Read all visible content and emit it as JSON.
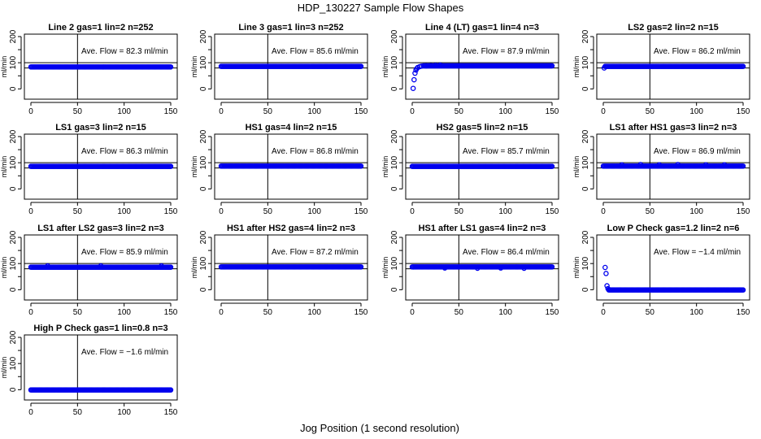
{
  "figure": {
    "title": "HDP_130227  Sample Flow Shapes",
    "xlabel": "Jog Position (1 second resolution)"
  },
  "chart_data": [
    {
      "type": "scatter",
      "title": "Line 2 gas=1 lin=2 n=252",
      "annotation": "Ave. Flow =  82.3  ml/min",
      "ylabel": "ml/min",
      "xlim": [
        0,
        150
      ],
      "ylim": [
        -30,
        200
      ],
      "xticks": [
        0,
        50,
        100,
        150
      ],
      "yticks": [
        0,
        100,
        200
      ],
      "yticks_shown": [
        0,
        50,
        100,
        150,
        200
      ],
      "hlines": [
        100,
        80
      ],
      "vline": 50,
      "marker_color": "#0000ee",
      "dense_points": {
        "x_range": [
          0,
          150
        ],
        "y": 84
      },
      "extra_points": []
    },
    {
      "type": "scatter",
      "title": "Line 3 gas=1 lin=3 n=252",
      "annotation": "Ave. Flow =  85.6  ml/min",
      "ylabel": "ml/min",
      "xlim": [
        0,
        150
      ],
      "ylim": [
        -30,
        200
      ],
      "xticks": [
        0,
        50,
        100,
        150
      ],
      "yticks_shown": [
        0,
        50,
        100,
        150,
        200
      ],
      "hlines": [
        100,
        80
      ],
      "vline": 50,
      "marker_color": "#0000ee",
      "dense_points": {
        "x_range": [
          0,
          150
        ],
        "y": 86
      },
      "extra_points": []
    },
    {
      "type": "scatter",
      "title": "Line 4 (LT) gas=1 lin=4 n=3",
      "annotation": "Ave. Flow =  87.9  ml/min",
      "ylabel": "ml/min",
      "xlim": [
        0,
        150
      ],
      "ylim": [
        -30,
        200
      ],
      "xticks": [
        0,
        50,
        100,
        150
      ],
      "yticks_shown": [
        0,
        50,
        100,
        150,
        200
      ],
      "hlines": [
        100,
        80
      ],
      "vline": 50,
      "marker_color": "#0000ee",
      "dense_points": {
        "x_range": [
          12,
          150
        ],
        "y": 88
      },
      "extra_points": [
        {
          "x": 1,
          "y": 2
        },
        {
          "x": 2,
          "y": 35
        },
        {
          "x": 3,
          "y": 60
        },
        {
          "x": 4,
          "y": 72
        },
        {
          "x": 5,
          "y": 78
        },
        {
          "x": 6,
          "y": 82
        },
        {
          "x": 8,
          "y": 85
        },
        {
          "x": 10,
          "y": 87
        },
        {
          "x": 15,
          "y": 88
        },
        {
          "x": 20,
          "y": 89
        },
        {
          "x": 25,
          "y": 90
        },
        {
          "x": 30,
          "y": 91
        }
      ]
    },
    {
      "type": "scatter",
      "title": "LS2 gas=2 lin=2 n=15",
      "annotation": "Ave. Flow =  86.2  ml/min",
      "ylabel": "ml/min",
      "xlim": [
        0,
        150
      ],
      "ylim": [
        -30,
        200
      ],
      "xticks": [
        0,
        50,
        100,
        150
      ],
      "yticks_shown": [
        0,
        50,
        100,
        150,
        200
      ],
      "hlines": [
        100,
        80
      ],
      "vline": 50,
      "marker_color": "#0000ee",
      "dense_points": {
        "x_range": [
          2,
          150
        ],
        "y": 86
      },
      "extra_points": [
        {
          "x": 1,
          "y": 80
        }
      ]
    },
    {
      "type": "scatter",
      "title": "LS1 gas=3 lin=2 n=15",
      "annotation": "Ave. Flow =  86.3  ml/min",
      "ylabel": "ml/min",
      "xlim": [
        0,
        150
      ],
      "ylim": [
        -30,
        200
      ],
      "xticks": [
        0,
        50,
        100,
        150
      ],
      "yticks_shown": [
        0,
        50,
        100,
        150,
        200
      ],
      "hlines": [
        100,
        80
      ],
      "vline": 50,
      "marker_color": "#0000ee",
      "dense_points": {
        "x_range": [
          0,
          150
        ],
        "y": 86
      },
      "extra_points": []
    },
    {
      "type": "scatter",
      "title": "HS1 gas=4 lin=2 n=15",
      "annotation": "Ave. Flow =  86.8  ml/min",
      "ylabel": "ml/min",
      "xlim": [
        0,
        150
      ],
      "ylim": [
        -30,
        200
      ],
      "xticks": [
        0,
        50,
        100,
        150
      ],
      "yticks_shown": [
        0,
        50,
        100,
        150,
        200
      ],
      "hlines": [
        100,
        80
      ],
      "vline": 50,
      "marker_color": "#0000ee",
      "dense_points": {
        "x_range": [
          0,
          150
        ],
        "y": 87
      },
      "extra_points": []
    },
    {
      "type": "scatter",
      "title": "HS2 gas=5 lin=2 n=15",
      "annotation": "Ave. Flow =  85.7  ml/min",
      "ylabel": "ml/min",
      "xlim": [
        0,
        150
      ],
      "ylim": [
        -30,
        200
      ],
      "xticks": [
        0,
        50,
        100,
        150
      ],
      "yticks_shown": [
        0,
        50,
        100,
        150,
        200
      ],
      "hlines": [
        100,
        80
      ],
      "vline": 50,
      "marker_color": "#0000ee",
      "dense_points": {
        "x_range": [
          0,
          150
        ],
        "y": 86
      },
      "extra_points": []
    },
    {
      "type": "scatter",
      "title": "LS1 after HS1 gas=3 lin=2 n=3",
      "annotation": "Ave. Flow =  86.9  ml/min",
      "ylabel": "ml/min",
      "xlim": [
        0,
        150
      ],
      "ylim": [
        -30,
        200
      ],
      "xticks": [
        0,
        50,
        100,
        150
      ],
      "yticks_shown": [
        0,
        50,
        100,
        150,
        200
      ],
      "hlines": [
        100,
        80
      ],
      "vline": 50,
      "marker_color": "#0000ee",
      "dense_points": {
        "x_range": [
          0,
          150
        ],
        "y": 87
      },
      "extra_points": [
        {
          "x": 20,
          "y": 92
        },
        {
          "x": 40,
          "y": 93
        },
        {
          "x": 60,
          "y": 92
        },
        {
          "x": 80,
          "y": 93
        },
        {
          "x": 110,
          "y": 92
        },
        {
          "x": 130,
          "y": 92
        }
      ]
    },
    {
      "type": "scatter",
      "title": "LS1 after LS2 gas=3 lin=2 n=3",
      "annotation": "Ave. Flow =  85.9  ml/min",
      "ylabel": "ml/min",
      "xlim": [
        0,
        150
      ],
      "ylim": [
        -30,
        200
      ],
      "xticks": [
        0,
        50,
        100,
        150
      ],
      "yticks_shown": [
        0,
        50,
        100,
        150,
        200
      ],
      "hlines": [
        100,
        80
      ],
      "vline": 50,
      "marker_color": "#0000ee",
      "dense_points": {
        "x_range": [
          0,
          150
        ],
        "y": 86
      },
      "extra_points": [
        {
          "x": 18,
          "y": 91
        },
        {
          "x": 75,
          "y": 91
        },
        {
          "x": 140,
          "y": 91
        }
      ]
    },
    {
      "type": "scatter",
      "title": "HS1 after HS2 gas=4 lin=2 n=3",
      "annotation": "Ave. Flow =  87.2  ml/min",
      "ylabel": "ml/min",
      "xlim": [
        0,
        150
      ],
      "ylim": [
        -30,
        200
      ],
      "xticks": [
        0,
        50,
        100,
        150
      ],
      "yticks_shown": [
        0,
        50,
        100,
        150,
        200
      ],
      "hlines": [
        100,
        80
      ],
      "vline": 50,
      "marker_color": "#0000ee",
      "dense_points": {
        "x_range": [
          0,
          150
        ],
        "y": 87
      },
      "extra_points": []
    },
    {
      "type": "scatter",
      "title": "HS1 after LS1 gas=4 lin=2 n=3",
      "annotation": "Ave. Flow =  86.4  ml/min",
      "ylabel": "ml/min",
      "xlim": [
        0,
        150
      ],
      "ylim": [
        -30,
        200
      ],
      "xticks": [
        0,
        50,
        100,
        150
      ],
      "yticks_shown": [
        0,
        50,
        100,
        150,
        200
      ],
      "hlines": [
        100,
        80
      ],
      "vline": 50,
      "marker_color": "#0000ee",
      "dense_points": {
        "x_range": [
          0,
          150
        ],
        "y": 87
      },
      "extra_points": [
        {
          "x": 35,
          "y": 83
        },
        {
          "x": 70,
          "y": 82
        },
        {
          "x": 95,
          "y": 83
        },
        {
          "x": 120,
          "y": 82
        }
      ]
    },
    {
      "type": "scatter",
      "title": "Low P Check gas=1.2 lin=2 n=6",
      "annotation": "Ave. Flow =  −1.4  ml/min",
      "ylabel": "ml/min",
      "xlim": [
        0,
        150
      ],
      "ylim": [
        -30,
        200
      ],
      "xticks": [
        0,
        50,
        100,
        150
      ],
      "yticks_shown": [
        0,
        50,
        100,
        150,
        200
      ],
      "hlines": [],
      "vline": 50,
      "marker_color": "#0000ee",
      "dense_points": {
        "x_range": [
          6,
          150
        ],
        "y": -1
      },
      "extra_points": [
        {
          "x": 2,
          "y": 85
        },
        {
          "x": 3,
          "y": 62
        },
        {
          "x": 4,
          "y": 15
        },
        {
          "x": 5,
          "y": 4
        }
      ]
    },
    {
      "type": "scatter",
      "title": "High P Check gas=1 lin=0.8 n=3",
      "annotation": "Ave. Flow =  −1.6  ml/min",
      "ylabel": "ml/min",
      "xlim": [
        0,
        150
      ],
      "ylim": [
        -30,
        200
      ],
      "xticks": [
        0,
        50,
        100,
        150
      ],
      "yticks_shown": [
        0,
        50,
        100,
        150,
        200
      ],
      "hlines": [],
      "vline": 50,
      "marker_color": "#0000ee",
      "dense_points": {
        "x_range": [
          0,
          150
        ],
        "y": -1
      },
      "extra_points": []
    }
  ]
}
